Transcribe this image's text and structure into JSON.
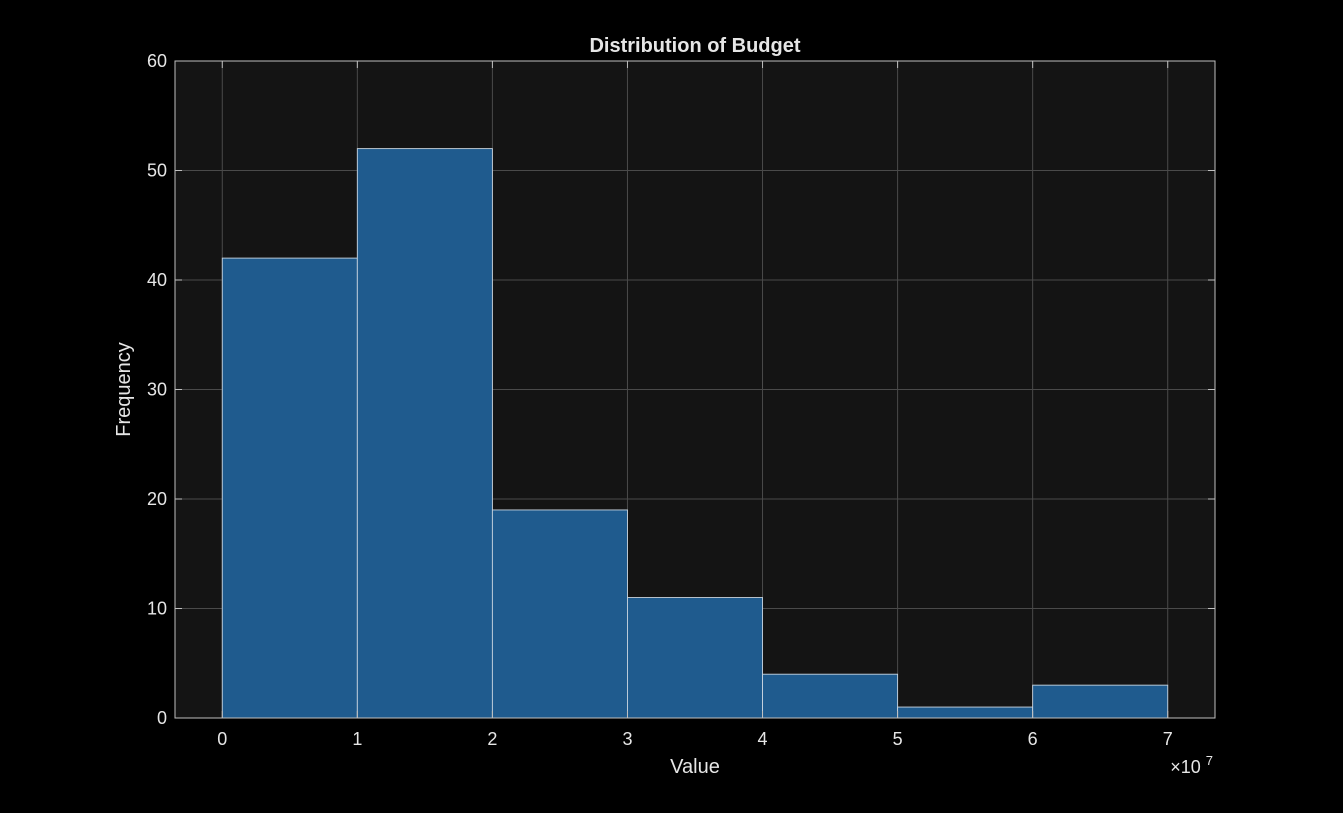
{
  "chart_data": {
    "type": "bar",
    "title": "Distribution of Budget",
    "xlabel": "Value",
    "ylabel": "Frequency",
    "x_multiplier_label": "×10",
    "x_multiplier_exponent": "7",
    "bin_edges": [
      0,
      10000000,
      20000000,
      30000000,
      40000000,
      50000000,
      60000000,
      70000000
    ],
    "values": [
      42,
      52,
      19,
      11,
      4,
      1,
      3
    ],
    "xlim": [
      -3500000,
      73500000
    ],
    "ylim": [
      0,
      60
    ],
    "x_ticks": [
      0,
      10000000,
      20000000,
      30000000,
      40000000,
      50000000,
      60000000,
      70000000
    ],
    "x_tick_labels": [
      "0",
      "1",
      "2",
      "3",
      "4",
      "5",
      "6",
      "7"
    ],
    "y_ticks": [
      0,
      10,
      20,
      30,
      40,
      50,
      60
    ],
    "y_tick_labels": [
      "0",
      "10",
      "20",
      "30",
      "40",
      "50",
      "60"
    ],
    "grid": true,
    "legend": false,
    "colors": {
      "page_background": "#000000",
      "plot_background": "#141414",
      "bar_fill": "#1f5b8e",
      "bar_edge": "#c8d4df",
      "grid": "#4a4a4a",
      "axis": "#bfbfbf",
      "text": "#e6e6e6"
    }
  }
}
